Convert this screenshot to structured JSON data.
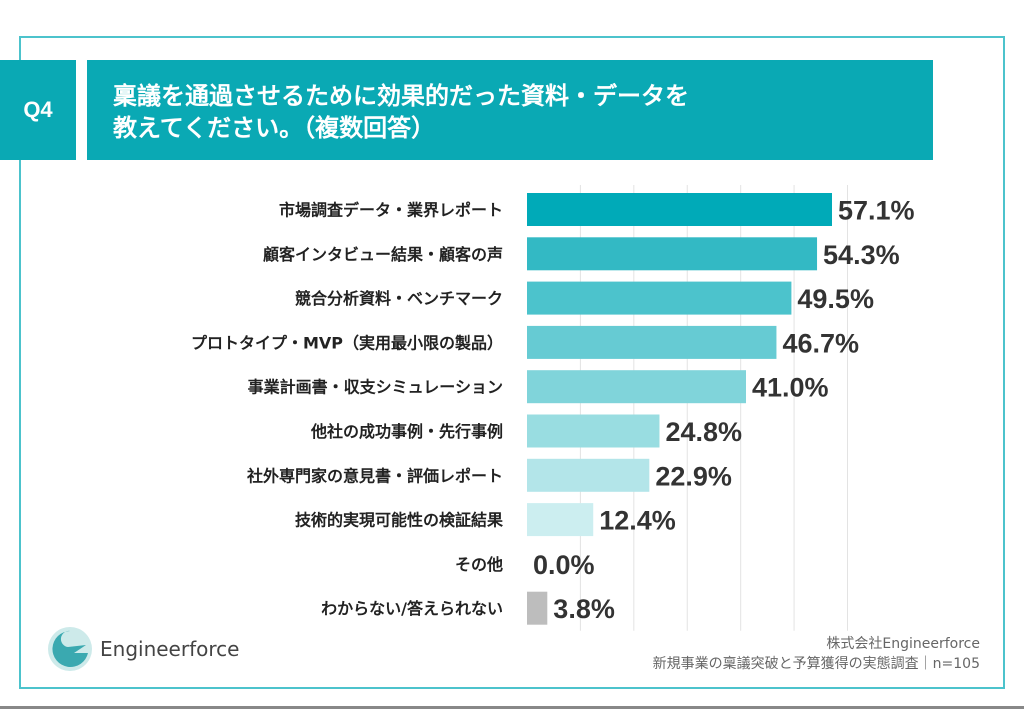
{
  "header": {
    "question_no": "Q4",
    "title_line1": "稟議を通過させるために効果的だった資料・データを",
    "title_line2": "教えてください。（複数回答）"
  },
  "chart_data": {
    "type": "bar",
    "orientation": "horizontal",
    "categories": [
      "市場調査データ・業界レポート",
      "顧客インタビュー結果・顧客の声",
      "競合分析資料・ベンチマーク",
      "プロトタイプ・MVP（実用最小限の製品）",
      "事業計画書・収支シミュレーション",
      "他社の成功事例・先行事例",
      "社外専門家の意見書・評価レポート",
      "技術的実現可能性の検証結果",
      "その他",
      "わからない/答えられない"
    ],
    "values": [
      57.1,
      54.3,
      49.5,
      46.7,
      41.0,
      24.8,
      22.9,
      12.4,
      0.0,
      3.8
    ],
    "value_labels": [
      "57.1%",
      "54.3%",
      "49.5%",
      "46.7%",
      "41.0%",
      "24.8%",
      "22.9%",
      "12.4%",
      "0.0%",
      "3.8%"
    ],
    "colors": [
      "#00aab8",
      "#33b9c4",
      "#4cc3cc",
      "#66cbd3",
      "#80d4da",
      "#99dde1",
      "#b3e5e9",
      "#cceef0",
      "#dff4f5",
      "#bdbdbd"
    ],
    "xlim": [
      0,
      60
    ],
    "grid": true,
    "grid_step": 10,
    "axis_tick_labels": false
  },
  "footer": {
    "logo_text": "Engineerforce",
    "company": "株式会社Engineerforce",
    "survey": "新規事業の稟議突破と予算獲得の実態調査｜n=105"
  }
}
